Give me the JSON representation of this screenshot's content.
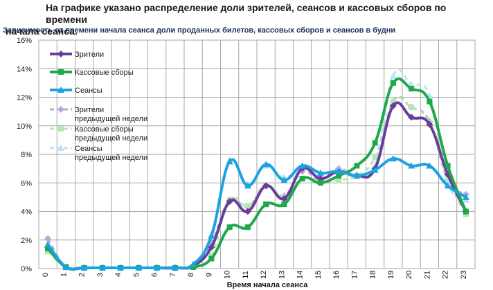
{
  "heading": {
    "line1": "На графике указано распределение доли зрителей, сеансов и кассовых сборов по времени",
    "line2": "начала сеанса."
  },
  "chart_data": {
    "type": "line",
    "title": "Зависимость от времени начала сеанса доли проданных билетов, кассовых сборов и сеансов в будни",
    "xlabel": "Время начала сеанса",
    "ylabel": "",
    "x": [
      0,
      1,
      2,
      3,
      4,
      5,
      6,
      7,
      8,
      9,
      10,
      11,
      12,
      13,
      14,
      15,
      16,
      17,
      18,
      19,
      20,
      21,
      22,
      23
    ],
    "ylim": [
      0,
      16
    ],
    "yticks": [
      "0%",
      "2%",
      "4%",
      "6%",
      "8%",
      "10%",
      "12%",
      "14%",
      "16%"
    ],
    "grid": true,
    "legend_position": "top-left",
    "series": [
      {
        "name": "Зрители",
        "color": "#6a3d9a",
        "style": "solid",
        "marker": "diamond",
        "filled": true,
        "values": [
          1.5,
          0.1,
          0.05,
          0.05,
          0.05,
          0.05,
          0.05,
          0.05,
          0.2,
          1.5,
          4.7,
          4.0,
          5.8,
          4.9,
          7.0,
          6.3,
          6.8,
          6.5,
          7.0,
          11.4,
          10.6,
          10.1,
          6.6,
          4.0
        ]
      },
      {
        "name": "Кассовые сборы",
        "color": "#1fa84a",
        "style": "solid",
        "marker": "square",
        "filled": true,
        "values": [
          1.4,
          0.1,
          0.05,
          0.05,
          0.05,
          0.05,
          0.05,
          0.05,
          0.1,
          0.7,
          2.9,
          2.9,
          4.5,
          4.5,
          6.3,
          6.0,
          6.5,
          7.2,
          8.8,
          13.0,
          12.6,
          11.7,
          7.2,
          4.0
        ]
      },
      {
        "name": "Сеансы",
        "color": "#1ba3e0",
        "style": "solid",
        "marker": "triangle",
        "filled": true,
        "values": [
          1.7,
          0.1,
          0.05,
          0.05,
          0.05,
          0.05,
          0.05,
          0.05,
          0.3,
          2.3,
          7.5,
          5.8,
          7.3,
          6.2,
          7.2,
          6.7,
          6.8,
          6.5,
          6.9,
          7.7,
          7.2,
          7.2,
          5.8,
          5.0
        ]
      },
      {
        "name": "Зрители предыдущей недели",
        "color": "#b9a8d8",
        "style": "dashed",
        "marker": "diamond",
        "filled": true,
        "values": [
          2.1,
          0.1,
          0.05,
          0.05,
          0.05,
          0.05,
          0.05,
          0.05,
          0.2,
          1.8,
          4.8,
          4.3,
          5.8,
          5.1,
          6.8,
          6.2,
          7.0,
          6.5,
          7.0,
          11.7,
          11.3,
          10.3,
          6.2,
          5.2
        ]
      },
      {
        "name": "Кассовые сборы предыдущей недели",
        "color": "#b2e8b2",
        "style": "dashed",
        "marker": "square",
        "filled": true,
        "values": [
          1.2,
          0.1,
          0.05,
          0.05,
          0.05,
          0.05,
          0.05,
          0.05,
          0.1,
          0.9,
          4.8,
          4.4,
          5.8,
          5.0,
          6.3,
          6.1,
          6.2,
          6.5,
          7.8,
          11.7,
          11.3,
          10.2,
          6.3,
          3.8
        ]
      },
      {
        "name": "Сеансы предыдущей недели",
        "color": "#b8e4f6",
        "style": "dashed",
        "marker": "triangle",
        "filled": true,
        "values": [
          1.6,
          0.1,
          0.05,
          0.05,
          0.05,
          0.05,
          0.05,
          0.05,
          0.3,
          2.4,
          7.6,
          5.9,
          7.2,
          6.4,
          7.0,
          6.6,
          6.9,
          6.6,
          7.2,
          13.5,
          12.9,
          12.1,
          6.0,
          4.8
        ]
      }
    ],
    "legend": [
      {
        "lines": [
          "Зрители"
        ]
      },
      {
        "lines": [
          "Кассовые сборы"
        ]
      },
      {
        "lines": [
          "Сеансы"
        ]
      },
      {
        "lines": [
          "Зрители",
          "предыдущей недели"
        ]
      },
      {
        "lines": [
          "Кассовые сборы",
          "предыдущей недели"
        ]
      },
      {
        "lines": [
          "Сеансы",
          "предыдущей недели"
        ]
      }
    ]
  }
}
